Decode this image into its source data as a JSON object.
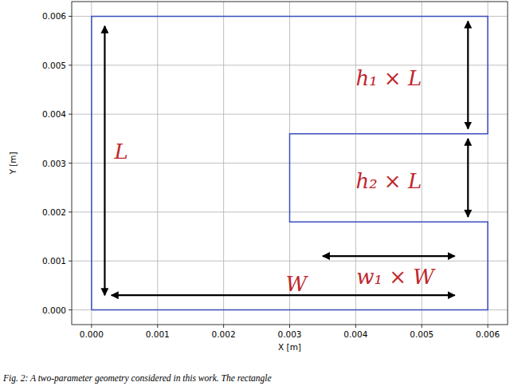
{
  "chart_data": {
    "type": "line",
    "x_label": "X [m]",
    "y_label": "Y [m]",
    "x": [
      0,
      0.006,
      0.006,
      0.003,
      0.003,
      0.006,
      0.006,
      0,
      0
    ],
    "values": [
      0,
      0,
      0.0018,
      0.0018,
      0.0036,
      0.0036,
      0.006,
      0.006,
      0
    ],
    "color": "#3b4fbf",
    "xlim": [
      -0.0003,
      0.0063
    ],
    "ylim": [
      -0.0003,
      0.0063
    ],
    "xticks": [
      {
        "value": 0,
        "label": "0.000"
      },
      {
        "value": 0.001,
        "label": "0.001"
      },
      {
        "value": 0.002,
        "label": "0.002"
      },
      {
        "value": 0.003,
        "label": "0.003"
      },
      {
        "value": 0.004,
        "label": "0.004"
      },
      {
        "value": 0.005,
        "label": "0.005"
      },
      {
        "value": 0.006,
        "label": "0.006"
      }
    ],
    "yticks": [
      {
        "value": 0,
        "label": "0.000"
      },
      {
        "value": 0.001,
        "label": "0.001"
      },
      {
        "value": 0.002,
        "label": "0.002"
      },
      {
        "value": 0.003,
        "label": "0.003"
      },
      {
        "value": 0.004,
        "label": "0.004"
      },
      {
        "value": 0.005,
        "label": "0.005"
      },
      {
        "value": 0.006,
        "label": "0.006"
      }
    ],
    "grid": true,
    "annotations": [
      {
        "text": "L",
        "x": 0.00045,
        "y": 0.0032,
        "arrow": [
          [
            0.0002,
            0.0058
          ],
          [
            0.0002,
            0.0003
          ]
        ]
      },
      {
        "text": "W",
        "x": 0.0031,
        "y": 0.0005,
        "arrow": [
          [
            0.0003,
            0.0003
          ],
          [
            0.0055,
            0.0003
          ]
        ]
      },
      {
        "text": "h₁ × L",
        "x": 0.0045,
        "y": 0.0047,
        "arrow": [
          [
            0.0057,
            0.0059
          ],
          [
            0.0057,
            0.0037
          ]
        ]
      },
      {
        "text": "h₂ × L",
        "x": 0.0045,
        "y": 0.0026,
        "arrow": [
          [
            0.0057,
            0.0035
          ],
          [
            0.0057,
            0.0019
          ]
        ]
      },
      {
        "text": "w₁ × W",
        "x": 0.0046,
        "y": 0.00065,
        "arrow": [
          [
            0.0035,
            0.0011
          ],
          [
            0.0055,
            0.0011
          ]
        ]
      }
    ],
    "caption": "Fig. 2: A two-parameter geometry considered in this work. The rectangle"
  }
}
